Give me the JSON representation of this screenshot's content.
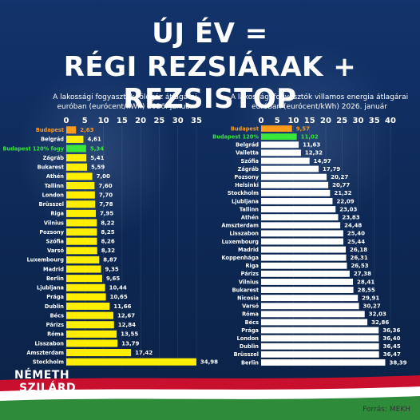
{
  "title_line1": "ÚJ ÉV =",
  "title_line2": "RÉGI REZSIÁRAK + REZSISTOP",
  "logo": {
    "line1": "NÉMETH",
    "line2": "SZILÁRD"
  },
  "source": "Forrás: MEKH",
  "colors": {
    "bar_default": "#ffee00",
    "highlight_orange": "#ff9a1a",
    "highlight_green": "#39e639",
    "bar_right": "#ffffff"
  },
  "chart_data": [
    {
      "type": "bar",
      "orientation": "horizontal",
      "title": "A lakossági fogyasztók földgáz átlagárai\neuróban (eurócent/kWh) 2026. január",
      "xlim": [
        0,
        35
      ],
      "xticks": [
        0,
        5,
        10,
        15,
        20,
        25,
        30,
        35
      ],
      "categories": [
        "Budapest",
        "Belgrád",
        "Budapest 120% fogy",
        "Zágráb",
        "Bukarest",
        "Athén",
        "Tallinn",
        "London",
        "Brüsszel",
        "Riga",
        "Vilnius",
        "Pozsony",
        "Szófia",
        "Varsó",
        "Luxembourg",
        "Madrid",
        "Berlin",
        "Ljubljana",
        "Prága",
        "Dublin",
        "Bécs",
        "Párizs",
        "Róma",
        "Lisszabon",
        "Amszterdam",
        "Stockholm"
      ],
      "values": [
        2.63,
        4.61,
        5.34,
        5.41,
        5.59,
        7.0,
        7.6,
        7.7,
        7.78,
        7.95,
        8.22,
        8.25,
        8.26,
        8.32,
        8.87,
        9.35,
        9.65,
        10.44,
        10.65,
        11.66,
        12.67,
        12.84,
        13.55,
        13.79,
        17.42,
        34.98
      ],
      "value_labels": [
        "2,63",
        "4,61",
        "5,34",
        "5,41",
        "5,59",
        "7,00",
        "7,60",
        "7,70",
        "7,78",
        "7,95",
        "8,22",
        "8,25",
        "8,26",
        "8,32",
        "8,87",
        "9,35",
        "9,65",
        "10,44",
        "10,65",
        "11,66",
        "12,67",
        "12,84",
        "13,55",
        "13,79",
        "17,42",
        "34,98"
      ],
      "highlight": {
        "0": "orange",
        "2": "green"
      },
      "bar_color": "yellow"
    },
    {
      "type": "bar",
      "orientation": "horizontal",
      "title": "A lakossági fogyasztók villamos energia átlagárai\neuróban (eurócent/kWh) 2026. január",
      "xlim": [
        0,
        40
      ],
      "xticks": [
        0,
        5,
        10,
        15,
        20,
        25,
        30,
        35,
        40
      ],
      "categories": [
        "Budapest",
        "Budapest 120%",
        "Belgrád",
        "Valletta",
        "Szófia",
        "Zágráb",
        "Pozsony",
        "Helsinki",
        "Stockholm",
        "Ljubljana",
        "Tallinn",
        "Athén",
        "Amszterdam",
        "Lisszabon",
        "Luxembourg",
        "Madrid",
        "Koppenhága",
        "Riga",
        "Párizs",
        "Vilnius",
        "Bukarest",
        "Nicosia",
        "Varsó",
        "Róma",
        "Bécs",
        "Prága",
        "London",
        "Dublin",
        "Brüsszel",
        "Berlin"
      ],
      "values": [
        9.57,
        11.02,
        11.63,
        12.32,
        14.97,
        17.79,
        20.27,
        20.77,
        21.32,
        22.09,
        23.03,
        23.83,
        24.48,
        25.4,
        25.44,
        26.18,
        26.31,
        26.53,
        27.38,
        28.41,
        28.55,
        29.91,
        30.27,
        32.03,
        32.86,
        36.36,
        36.4,
        36.45,
        36.47,
        38.39
      ],
      "value_labels": [
        "9,57",
        "11,02",
        "11,63",
        "12,32",
        "14,97",
        "17,79",
        "20,27",
        "20,77",
        "21,32",
        "22,09",
        "23,03",
        "23,83",
        "24,48",
        "25,40",
        "25,44",
        "26,18",
        "26,31",
        "26,53",
        "27,38",
        "28,41",
        "28,55",
        "29,91",
        "30,27",
        "32,03",
        "32,86",
        "36,36",
        "36,40",
        "36,45",
        "36,47",
        "38,39"
      ],
      "highlight": {
        "0": "orange",
        "1": "green"
      },
      "bar_color": "white"
    }
  ]
}
